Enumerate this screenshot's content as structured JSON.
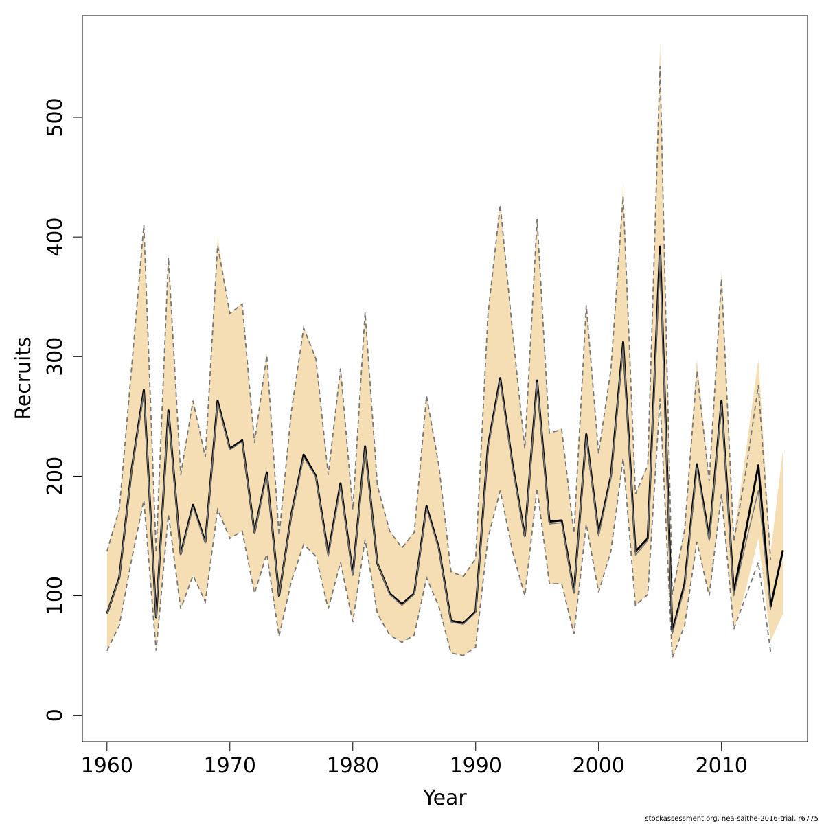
{
  "chart_data": {
    "type": "line",
    "xlabel": "Year",
    "ylabel": "Recruits",
    "xlim": [
      1958,
      2017
    ],
    "ylim": [
      -22,
      585
    ],
    "xticks": [
      1960,
      1970,
      1980,
      1990,
      2000,
      2010
    ],
    "yticks": [
      0,
      100,
      200,
      300,
      400,
      500
    ],
    "grid": false,
    "colors": {
      "band": "#f5deb3",
      "estimate": "#000000",
      "previous": "#777777"
    },
    "series": [
      {
        "x": [
          1960,
          1961,
          1962,
          1963,
          1964,
          1965,
          1966,
          1967,
          1968,
          1969,
          1970,
          1971,
          1972,
          1973,
          1974,
          1975,
          1976,
          1977,
          1978,
          1979,
          1980,
          1981,
          1982,
          1983,
          1984,
          1985,
          1986,
          1987,
          1988,
          1989,
          1990,
          1991,
          1992,
          1993,
          1994,
          1995,
          1996,
          1997,
          1998,
          1999,
          2000,
          2001,
          2002,
          2003,
          2004,
          2005,
          2006,
          2007,
          2008,
          2009,
          2010,
          2011,
          2012,
          2013,
          2014,
          2015
        ],
        "values": [
          85,
          115,
          205,
          272,
          82,
          255,
          135,
          176,
          145,
          263,
          223,
          230,
          153,
          203,
          100,
          168,
          218,
          200,
          135,
          194,
          118,
          225,
          127,
          102,
          93,
          102,
          175,
          140,
          79,
          77,
          87,
          225,
          282,
          210,
          150,
          280,
          162,
          163,
          103,
          235,
          152,
          200,
          312,
          137,
          148,
          392,
          70,
          110,
          210,
          148,
          263,
          103,
          155,
          209,
          91,
          138
        ],
        "lower": [
          54,
          75,
          130,
          180,
          54,
          168,
          89,
          117,
          95,
          172,
          148,
          154,
          102,
          135,
          66,
          112,
          143,
          133,
          89,
          128,
          78,
          147,
          85,
          67,
          61,
          67,
          115,
          91,
          52,
          50,
          57,
          148,
          188,
          137,
          100,
          190,
          110,
          110,
          68,
          160,
          103,
          137,
          215,
          92,
          101,
          265,
          48,
          75,
          145,
          100,
          185,
          70,
          106,
          148,
          62,
          85
        ],
        "upper": [
          138,
          173,
          292,
          412,
          137,
          385,
          202,
          265,
          217,
          400,
          336,
          345,
          229,
          303,
          152,
          255,
          325,
          300,
          203,
          292,
          173,
          340,
          193,
          155,
          141,
          154,
          268,
          210,
          121,
          117,
          132,
          338,
          428,
          323,
          225,
          418,
          236,
          240,
          153,
          345,
          220,
          290,
          445,
          185,
          210,
          562,
          102,
          157,
          298,
          197,
          372,
          150,
          222,
          298,
          136,
          222
        ]
      },
      {
        "x": [
          1960,
          1961,
          1962,
          1963,
          1964,
          1965,
          1966,
          1967,
          1968,
          1969,
          1970,
          1971,
          1972,
          1973,
          1974,
          1975,
          1976,
          1977,
          1978,
          1979,
          1980,
          1981,
          1982,
          1983,
          1984,
          1985,
          1986,
          1987,
          1988,
          1989,
          1990,
          1991,
          1992,
          1993,
          1994,
          1995,
          1996,
          1997,
          1998,
          1999,
          2000,
          2001,
          2002,
          2003,
          2004,
          2005,
          2006,
          2007,
          2008,
          2009,
          2010,
          2011,
          2012,
          2013,
          2014
        ],
        "values": [
          85,
          114,
          204,
          270,
          82,
          253,
          134,
          174,
          144,
          261,
          222,
          229,
          152,
          201,
          100,
          167,
          216,
          199,
          133,
          192,
          117,
          223,
          127,
          101,
          92,
          101,
          173,
          139,
          78,
          76,
          86,
          223,
          280,
          208,
          149,
          278,
          160,
          161,
          102,
          233,
          150,
          198,
          309,
          134,
          146,
          385,
          68,
          107,
          207,
          146,
          260,
          100,
          145,
          188,
          88
        ],
        "lower": [
          54,
          75,
          130,
          180,
          54,
          168,
          89,
          117,
          95,
          172,
          148,
          154,
          102,
          135,
          66,
          112,
          143,
          133,
          89,
          128,
          78,
          147,
          85,
          67,
          61,
          67,
          115,
          91,
          52,
          50,
          57,
          148,
          188,
          137,
          100,
          190,
          110,
          110,
          68,
          160,
          103,
          137,
          215,
          92,
          101,
          265,
          48,
          75,
          145,
          100,
          185,
          72,
          100,
          128,
          53
        ],
        "upper": [
          137,
          172,
          290,
          410,
          136,
          383,
          201,
          263,
          216,
          393,
          336,
          344,
          228,
          301,
          150,
          254,
          324,
          298,
          201,
          290,
          172,
          337,
          192,
          154,
          140,
          153,
          267,
          209,
          120,
          116,
          131,
          335,
          427,
          321,
          223,
          415,
          236,
          239,
          152,
          343,
          219,
          289,
          434,
          185,
          209,
          543,
          101,
          155,
          288,
          196,
          365,
          145,
          205,
          276,
          130
        ]
      }
    ],
    "credit": "stockassessment.org, nea-saithe-2016-trial, r6775"
  }
}
